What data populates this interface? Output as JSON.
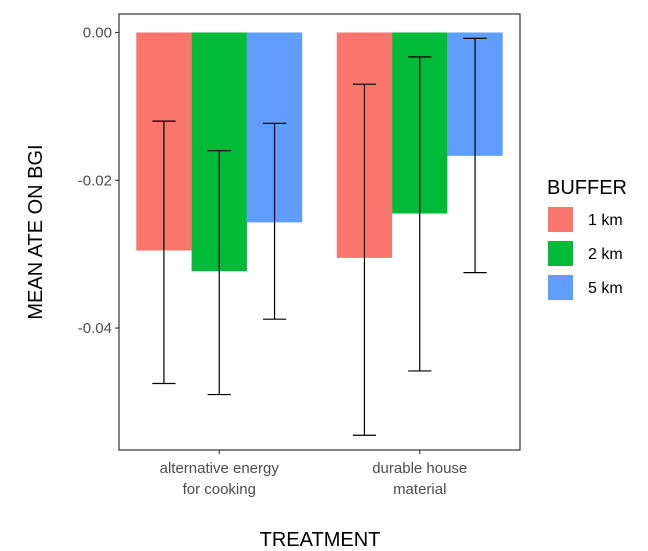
{
  "chart_data": {
    "type": "bar",
    "xlabel": "TREATMENT",
    "ylabel": "MEAN ATE ON BGI",
    "ylim": [
      -0.0565,
      0.0025
    ],
    "yticks": [
      "0.00",
      "-0.02",
      "-0.04"
    ],
    "ytick_values": [
      0.0,
      -0.02,
      -0.04
    ],
    "categories": [
      [
        "alternative energy",
        "for cooking"
      ],
      [
        "durable house",
        "material"
      ]
    ],
    "legend": {
      "title": "BUFFER",
      "position": "right"
    },
    "grid": false,
    "series": [
      {
        "name": "1 km",
        "color": "#F8766D",
        "values": [
          -0.0295,
          -0.0305
        ],
        "error_low": [
          -0.0475,
          -0.0545
        ],
        "error_high": [
          -0.012,
          -0.007
        ]
      },
      {
        "name": "2 km",
        "color": "#00BA38",
        "values": [
          -0.0323,
          -0.0245
        ],
        "error_low": [
          -0.049,
          -0.0458
        ],
        "error_high": [
          -0.016,
          -0.0033
        ]
      },
      {
        "name": "5 km",
        "color": "#619CFF",
        "values": [
          -0.0257,
          -0.0167
        ],
        "error_low": [
          -0.0388,
          -0.0325
        ],
        "error_high": [
          -0.0123,
          -0.0008
        ]
      }
    ]
  }
}
